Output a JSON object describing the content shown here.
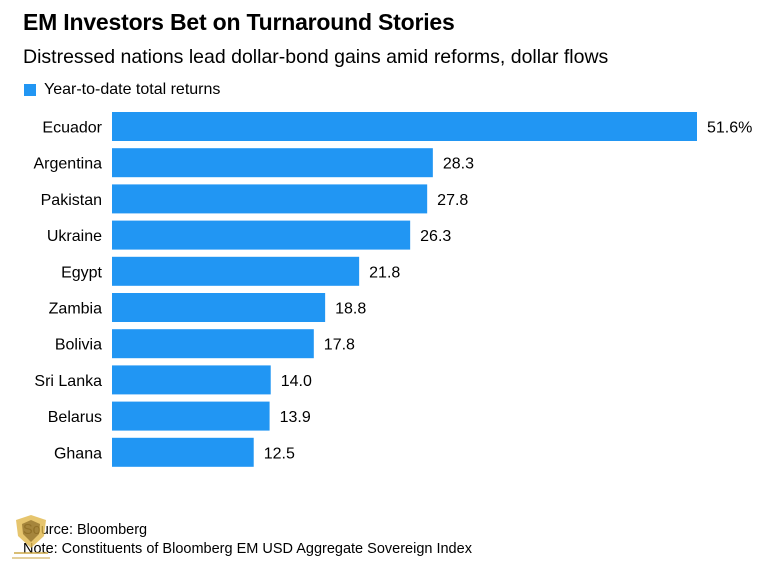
{
  "title": "EM Investors Bet on Turnaround Stories",
  "subtitle": "Distressed nations lead dollar-bond gains amid reforms, dollar flows",
  "colors": {
    "bar": "#2196f3",
    "text": "#000000",
    "background": "#ffffff"
  },
  "source": "Source: Bloomberg",
  "note": "Note: Constituents of Bloomberg EM USD Aggregate Sovereign Index",
  "chart_data": {
    "type": "bar",
    "orientation": "horizontal",
    "legend_position": "top-left",
    "grid": false,
    "xlim": [
      0,
      51.6
    ],
    "categories": [
      "Ecuador",
      "Argentina",
      "Pakistan",
      "Ukraine",
      "Egypt",
      "Zambia",
      "Bolivia",
      "Sri Lanka",
      "Belarus",
      "Ghana"
    ],
    "series": [
      {
        "name": "Year-to-date total returns",
        "values": [
          51.6,
          28.3,
          27.8,
          26.3,
          21.8,
          18.8,
          17.8,
          14.0,
          13.9,
          12.5
        ],
        "labels": [
          "51.6%",
          "28.3",
          "27.8",
          "26.3",
          "21.8",
          "18.8",
          "17.8",
          "14.0",
          "13.9",
          "12.5"
        ]
      }
    ]
  }
}
